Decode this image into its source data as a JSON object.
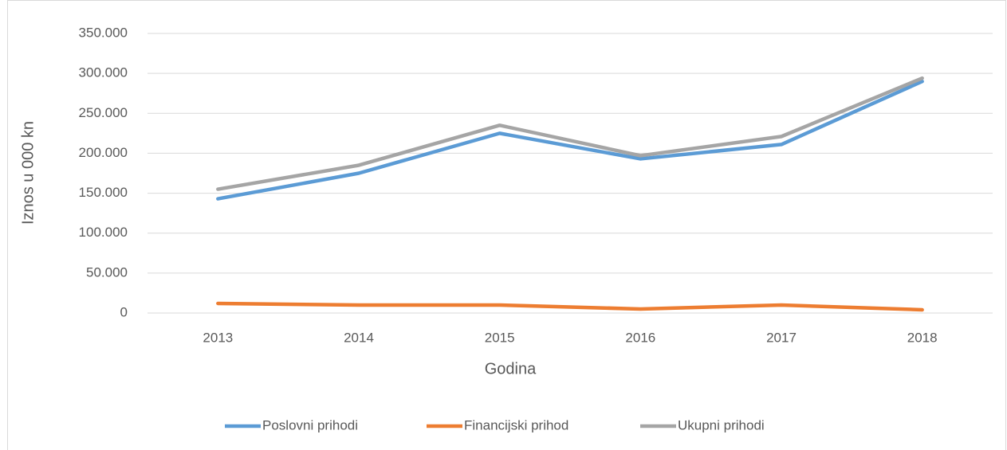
{
  "chart_data": {
    "type": "line",
    "x_label": "Godina",
    "y_label": "Iznos u 000 kn",
    "categories": [
      "2013",
      "2014",
      "2015",
      "2016",
      "2017",
      "2018"
    ],
    "series": [
      {
        "name": "Poslovni prihodi",
        "color": "#5b9bd5",
        "values": [
          143000,
          175000,
          225000,
          193000,
          211000,
          290000
        ]
      },
      {
        "name": "Financijski prihod",
        "color": "#ed7d31",
        "values": [
          12000,
          10000,
          10000,
          5000,
          10000,
          4000
        ]
      },
      {
        "name": "Ukupni prihodi",
        "color": "#a5a5a5",
        "values": [
          155000,
          185000,
          235000,
          197000,
          221000,
          294000
        ]
      }
    ],
    "ylim": [
      0,
      350000
    ],
    "yticks": [
      0,
      {
        "value": 50000,
        "label": "50.000"
      },
      {
        "value": 100000,
        "label": "100.000"
      },
      {
        "value": 150000,
        "label": "150.000"
      },
      {
        "value": 200000,
        "label": "200.000"
      },
      {
        "value": 250000,
        "label": "250.000"
      },
      {
        "value": 300000,
        "label": "300.000"
      },
      {
        "value": 350000,
        "label": "350.000"
      }
    ],
    "grid": true,
    "legend": "bottom"
  }
}
